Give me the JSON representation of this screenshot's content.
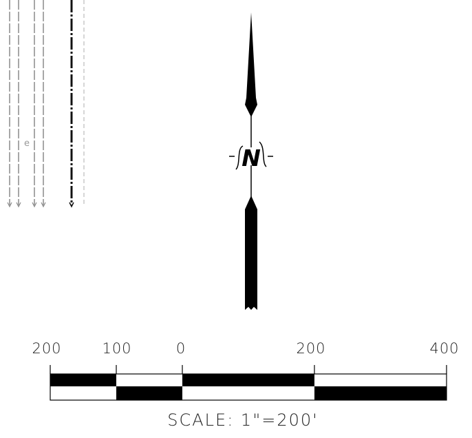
{
  "north_arrow": {
    "letter": "N"
  },
  "side_plot": {
    "label": "e"
  },
  "scale_bar": {
    "labels": [
      "200",
      "100",
      "0",
      "200",
      "400"
    ],
    "caption": "SCALE: 1\"=200'"
  }
}
